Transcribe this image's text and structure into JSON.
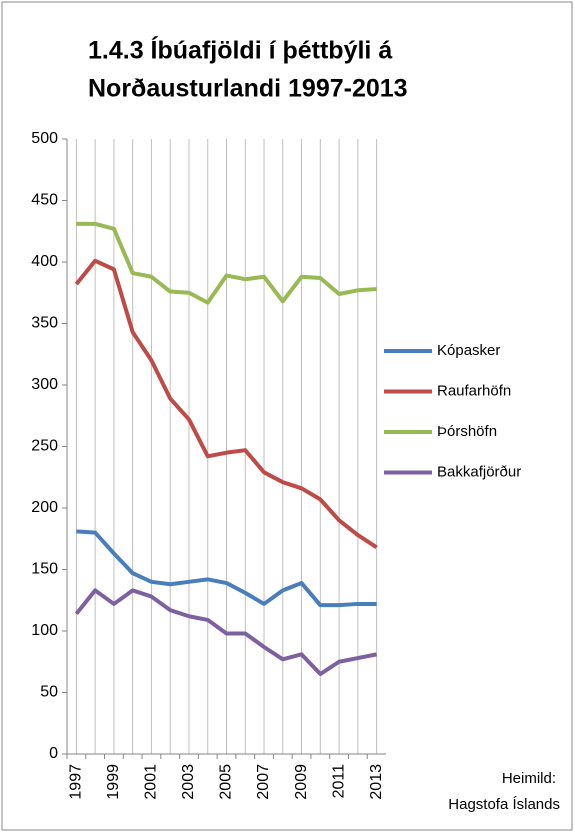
{
  "chart_data": {
    "type": "line",
    "title": [
      "1.4.3 Íbúafjöldi í þéttbýli á",
      "Norðausturlandi 1997-2013"
    ],
    "categories": [
      "1997",
      null,
      "1999",
      null,
      "2001",
      null,
      "2003",
      null,
      "2005",
      null,
      "2007",
      null,
      "2009",
      null,
      "2011",
      null,
      "2013"
    ],
    "series": [
      {
        "name": "Kópasker",
        "color": "#4a7ebb",
        "values": [
          181,
          180,
          163,
          147,
          140,
          138,
          140,
          142,
          139,
          131,
          122,
          133,
          139,
          121,
          121,
          122,
          122
        ]
      },
      {
        "name": "Raufarhöfn",
        "color": "#be4b48",
        "values": [
          382,
          401,
          394,
          343,
          320,
          289,
          272,
          242,
          245,
          247,
          229,
          221,
          216,
          207,
          190,
          178,
          168
        ]
      },
      {
        "name": "Þórshöfn",
        "color": "#98b954",
        "values": [
          431,
          431,
          427,
          391,
          388,
          376,
          375,
          367,
          389,
          386,
          388,
          368,
          388,
          387,
          374,
          377,
          378
        ]
      },
      {
        "name": "Bakkafjörður",
        "color": "#7d60a0",
        "values": [
          114,
          133,
          122,
          133,
          128,
          117,
          112,
          109,
          98,
          98,
          87,
          77,
          81,
          65,
          75,
          78,
          81
        ]
      }
    ],
    "ylim": [
      0,
      500
    ],
    "yticks": [
      0,
      50,
      100,
      150,
      200,
      250,
      300,
      350,
      400,
      450,
      500
    ],
    "grid": true,
    "legend": "right",
    "annotations": [
      "Heimild:",
      "Hagstofa Íslands"
    ]
  }
}
